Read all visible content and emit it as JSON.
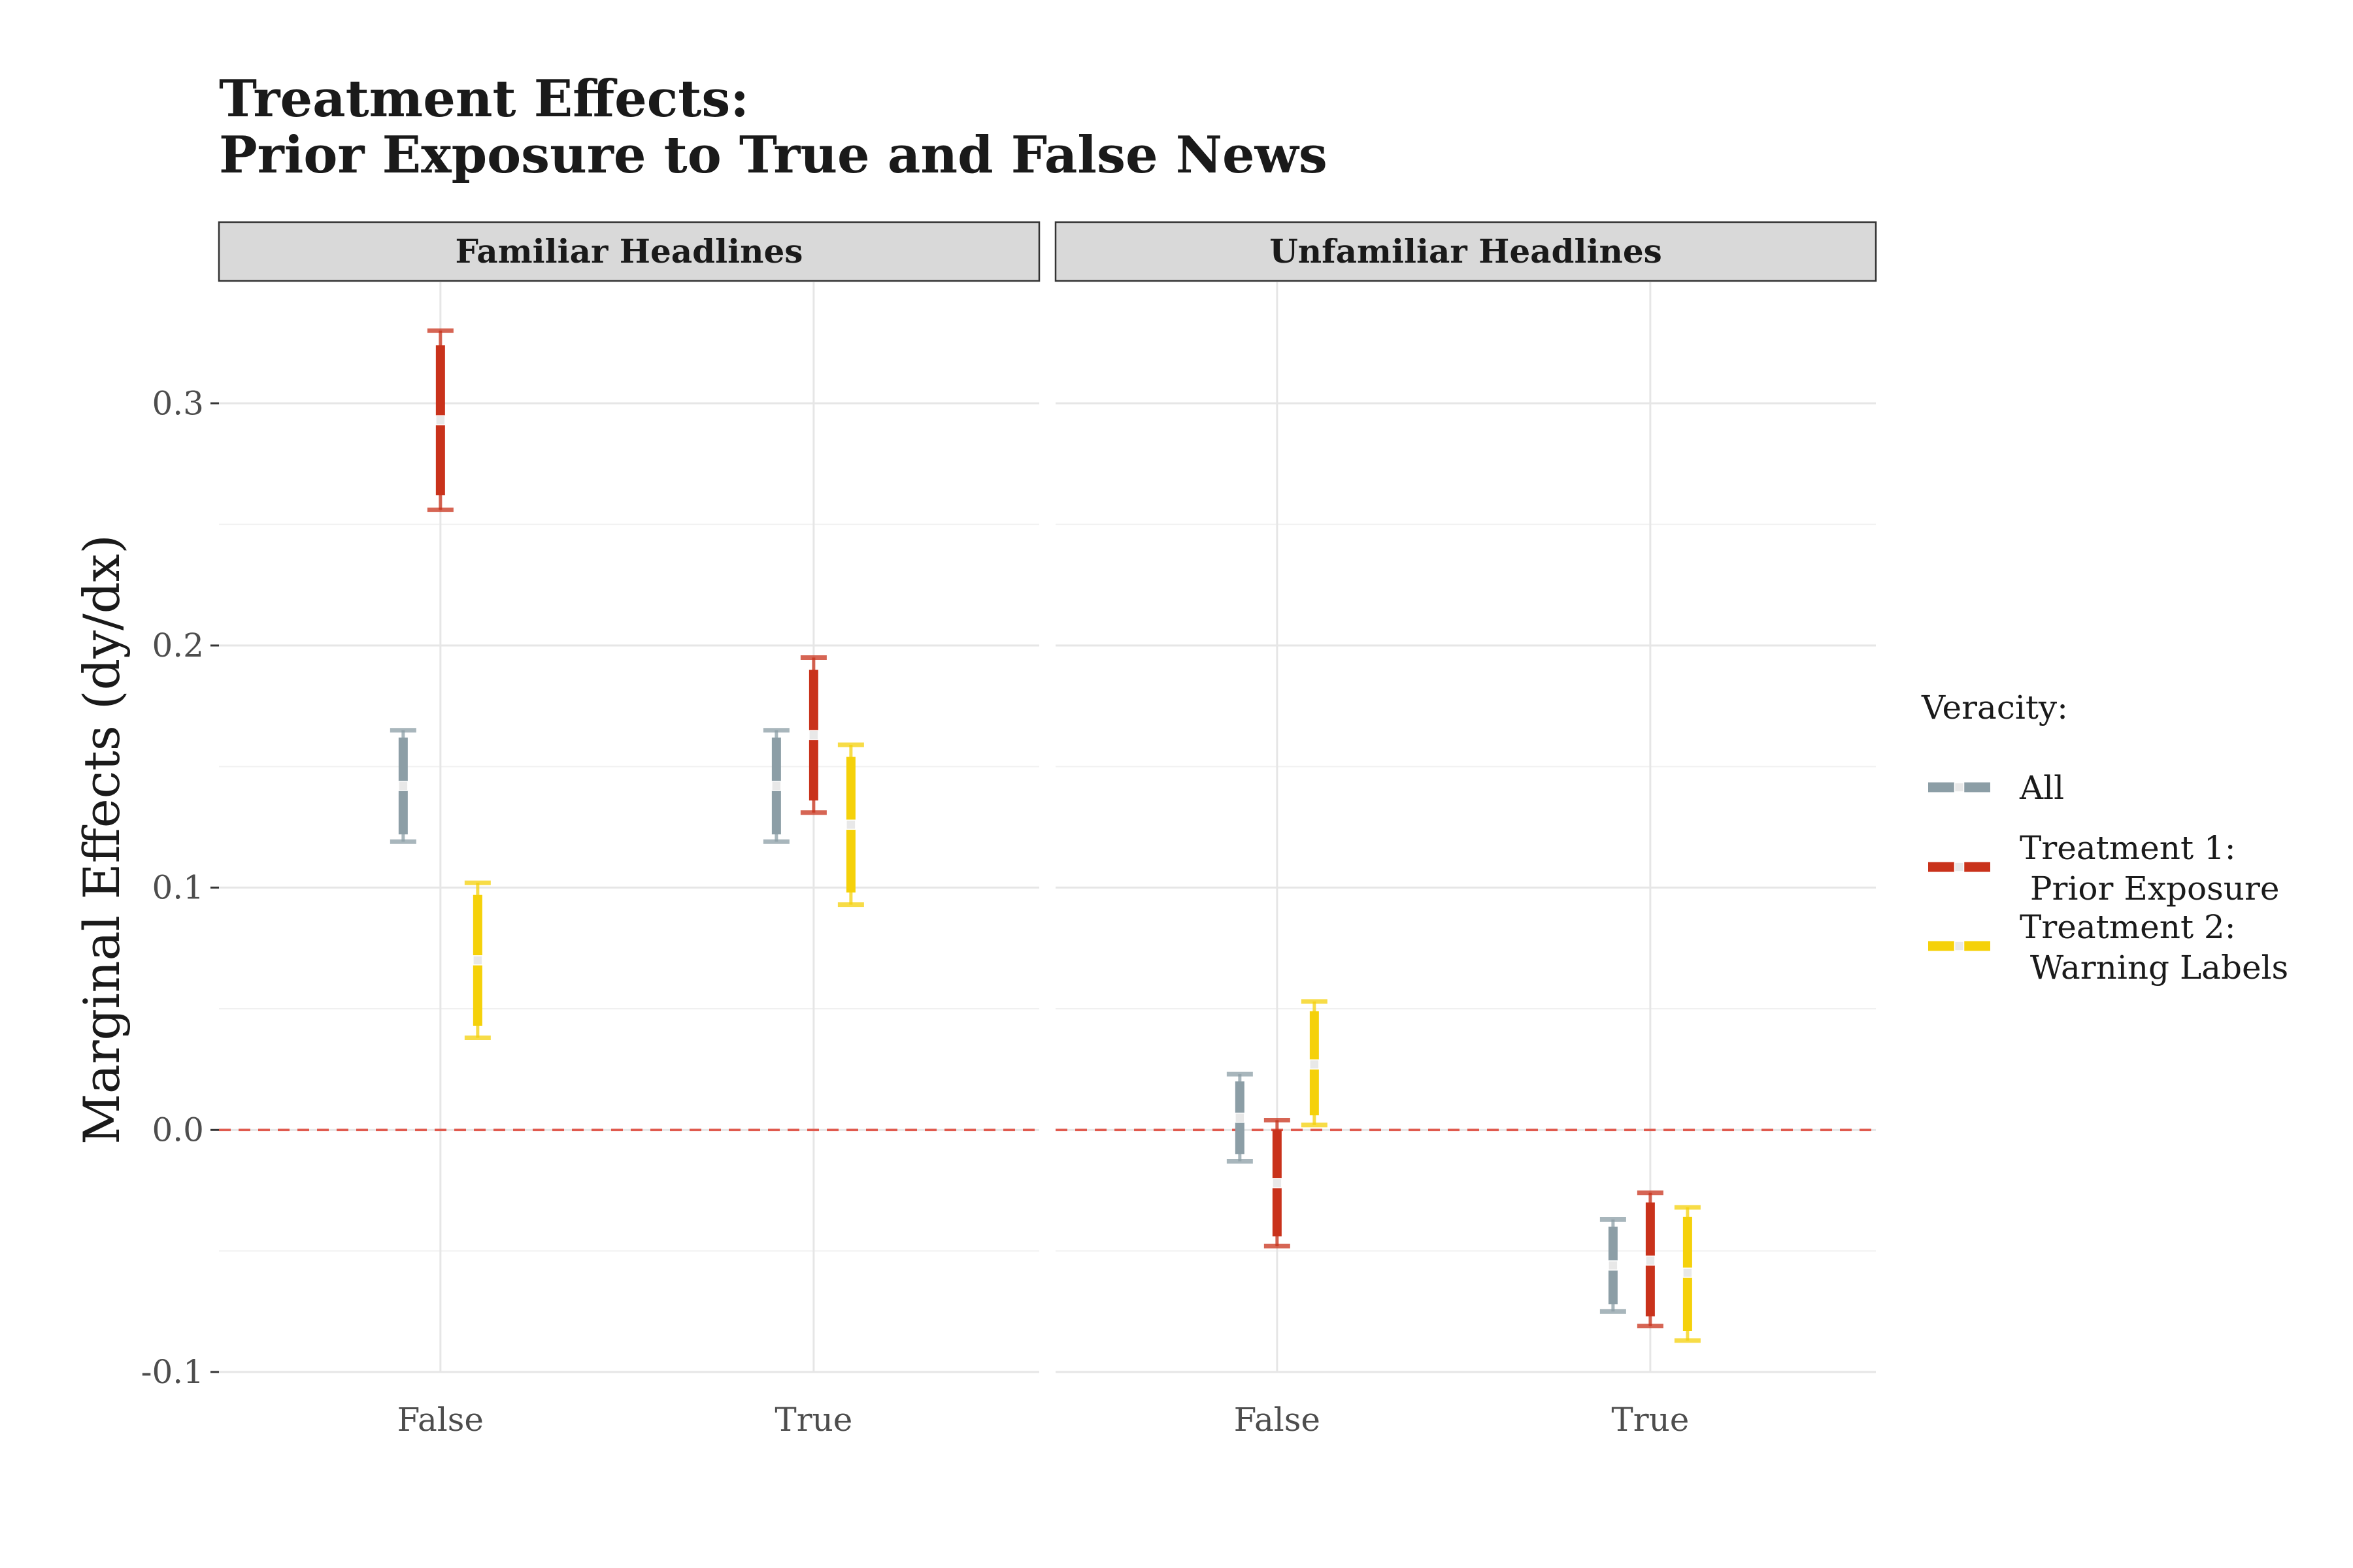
{
  "chart_data": {
    "type": "errorbar",
    "title_lines": [
      "Treatment Effects:",
      "Prior Exposure to True and False News"
    ],
    "ylabel": "Marginal Effects (dy/dx)",
    "xlabel": "",
    "ylim": [
      -0.1,
      0.35
    ],
    "yticks": [
      -0.1,
      0.0,
      0.1,
      0.2,
      0.3
    ],
    "ytick_labels": [
      "-0.1",
      "0.0",
      "0.1",
      "0.2",
      "0.3"
    ],
    "grid": true,
    "reference_line": {
      "y": 0.0,
      "style": "dashed",
      "color": "#E05A4E"
    },
    "categories": [
      "False",
      "True"
    ],
    "legend": {
      "title": "Veracity:",
      "placement": "right",
      "entries": [
        {
          "lines": [
            "All"
          ]
        },
        {
          "lines": [
            "Treatment 1:",
            " Prior Exposure"
          ]
        },
        {
          "lines": [
            "Treatment 2:",
            " Warning Labels"
          ]
        }
      ]
    },
    "series": [
      {
        "key": "all",
        "color": "#8C9EA6"
      },
      {
        "key": "prior_exposure",
        "color": "#C9321B"
      },
      {
        "key": "warning_labels",
        "color": "#F5D10A"
      }
    ],
    "panels": [
      {
        "label": "Familiar Headlines",
        "data": {
          "False": {
            "all": {
              "est": 0.142,
              "lo95": 0.119,
              "hi95": 0.165,
              "lo90": 0.122,
              "hi90": 0.162
            },
            "prior_exposure": {
              "est": 0.293,
              "lo95": 0.256,
              "hi95": 0.33,
              "lo90": 0.262,
              "hi90": 0.324
            },
            "warning_labels": {
              "est": 0.07,
              "lo95": 0.038,
              "hi95": 0.102,
              "lo90": 0.043,
              "hi90": 0.097
            }
          },
          "True": {
            "all": {
              "est": 0.142,
              "lo95": 0.119,
              "hi95": 0.165,
              "lo90": 0.122,
              "hi90": 0.162
            },
            "prior_exposure": {
              "est": 0.163,
              "lo95": 0.131,
              "hi95": 0.195,
              "lo90": 0.136,
              "hi90": 0.19
            },
            "warning_labels": {
              "est": 0.126,
              "lo95": 0.093,
              "hi95": 0.159,
              "lo90": 0.098,
              "hi90": 0.154
            }
          }
        }
      },
      {
        "label": "Unfamiliar Headlines",
        "data": {
          "False": {
            "all": {
              "est": 0.005,
              "lo95": -0.013,
              "hi95": 0.023,
              "lo90": -0.01,
              "hi90": 0.02
            },
            "prior_exposure": {
              "est": -0.022,
              "lo95": -0.048,
              "hi95": 0.004,
              "lo90": -0.044,
              "hi90": 0.0
            },
            "warning_labels": {
              "est": 0.027,
              "lo95": 0.002,
              "hi95": 0.053,
              "lo90": 0.006,
              "hi90": 0.049
            }
          },
          "True": {
            "all": {
              "est": -0.056,
              "lo95": -0.075,
              "hi95": -0.037,
              "lo90": -0.072,
              "hi90": -0.04
            },
            "prior_exposure": {
              "est": -0.054,
              "lo95": -0.081,
              "hi95": -0.026,
              "lo90": -0.077,
              "hi90": -0.03
            },
            "warning_labels": {
              "est": -0.059,
              "lo95": -0.087,
              "hi95": -0.032,
              "lo90": -0.083,
              "hi90": -0.036
            }
          }
        }
      }
    ]
  }
}
